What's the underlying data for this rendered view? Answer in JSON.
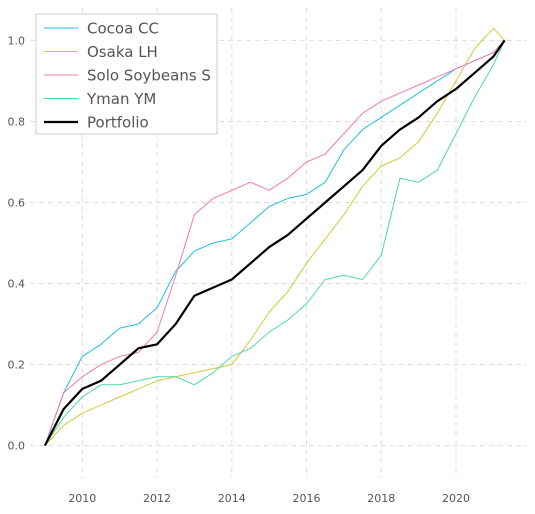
{
  "chart_data": {
    "type": "line",
    "title": "",
    "xlabel": "",
    "ylabel": "",
    "xlim": [
      2008.6,
      2021.9
    ],
    "ylim": [
      -0.08,
      1.08
    ],
    "xticks": [
      2010,
      2012,
      2014,
      2016,
      2018,
      2020
    ],
    "yticks": [
      0.0,
      0.2,
      0.4,
      0.6,
      0.8,
      1.0
    ],
    "xtick_labels": [
      "2010",
      "2012",
      "2014",
      "2016",
      "2018",
      "2020"
    ],
    "ytick_labels": [
      "0.0",
      "0.2",
      "0.4",
      "0.6",
      "0.8",
      "1.0"
    ],
    "grid": true,
    "legend_position": "top-left",
    "series": [
      {
        "name": "Cocoa CC",
        "color": "#22bfe0",
        "x": [
          2009.0,
          2009.5,
          2010.0,
          2010.5,
          2011.0,
          2011.5,
          2012.0,
          2012.5,
          2013.0,
          2013.5,
          2014.0,
          2014.5,
          2015.0,
          2015.5,
          2016.0,
          2016.5,
          2017.0,
          2017.5,
          2018.0,
          2018.5,
          2019.0,
          2019.5,
          2020.0,
          2020.5,
          2021.0,
          2021.3
        ],
        "y": [
          0.0,
          0.13,
          0.22,
          0.25,
          0.29,
          0.3,
          0.34,
          0.43,
          0.48,
          0.5,
          0.51,
          0.55,
          0.59,
          0.61,
          0.62,
          0.65,
          0.73,
          0.78,
          0.81,
          0.84,
          0.87,
          0.9,
          0.93,
          0.95,
          0.97,
          1.0
        ]
      },
      {
        "name": "Osaka LH",
        "color": "#d4c83a",
        "x": [
          2009.0,
          2009.5,
          2010.0,
          2010.5,
          2011.0,
          2011.5,
          2012.0,
          2012.5,
          2013.0,
          2013.5,
          2014.0,
          2014.5,
          2015.0,
          2015.5,
          2016.0,
          2016.5,
          2017.0,
          2017.5,
          2018.0,
          2018.5,
          2019.0,
          2019.5,
          2020.0,
          2020.5,
          2021.0,
          2021.3
        ],
        "y": [
          0.0,
          0.05,
          0.08,
          0.1,
          0.12,
          0.14,
          0.16,
          0.17,
          0.18,
          0.19,
          0.2,
          0.26,
          0.33,
          0.38,
          0.45,
          0.51,
          0.57,
          0.64,
          0.69,
          0.71,
          0.75,
          0.82,
          0.9,
          0.98,
          1.03,
          1.0
        ]
      },
      {
        "name": "Solo Soybeans S",
        "color": "#f07ab2",
        "x": [
          2009.0,
          2009.5,
          2010.0,
          2010.5,
          2011.0,
          2011.5,
          2012.0,
          2012.5,
          2013.0,
          2013.5,
          2014.0,
          2014.5,
          2015.0,
          2015.5,
          2016.0,
          2016.5,
          2017.0,
          2017.5,
          2018.0,
          2018.5,
          2019.0,
          2019.5,
          2020.0,
          2020.5,
          2021.0,
          2021.3
        ],
        "y": [
          0.0,
          0.13,
          0.17,
          0.2,
          0.22,
          0.23,
          0.28,
          0.42,
          0.57,
          0.61,
          0.63,
          0.65,
          0.63,
          0.66,
          0.7,
          0.72,
          0.77,
          0.82,
          0.85,
          0.87,
          0.89,
          0.91,
          0.93,
          0.95,
          0.97,
          1.0
        ]
      },
      {
        "name": "Yman YM",
        "color": "#4fd8a8",
        "x": [
          2009.0,
          2009.5,
          2010.0,
          2010.5,
          2011.0,
          2011.5,
          2012.0,
          2012.5,
          2013.0,
          2013.5,
          2014.0,
          2014.5,
          2015.0,
          2015.5,
          2016.0,
          2016.5,
          2017.0,
          2017.5,
          2018.0,
          2018.5,
          2019.0,
          2019.5,
          2020.0,
          2020.5,
          2021.0,
          2021.3
        ],
        "y": [
          0.0,
          0.07,
          0.12,
          0.15,
          0.15,
          0.16,
          0.17,
          0.17,
          0.15,
          0.18,
          0.22,
          0.24,
          0.28,
          0.31,
          0.35,
          0.41,
          0.42,
          0.41,
          0.47,
          0.66,
          0.65,
          0.68,
          0.77,
          0.86,
          0.94,
          1.0
        ]
      },
      {
        "name": "Portfolio",
        "color": "#000000",
        "x": [
          2009.0,
          2009.5,
          2010.0,
          2010.5,
          2011.0,
          2011.5,
          2012.0,
          2012.5,
          2013.0,
          2013.5,
          2014.0,
          2014.5,
          2015.0,
          2015.5,
          2016.0,
          2016.5,
          2017.0,
          2017.5,
          2018.0,
          2018.5,
          2019.0,
          2019.5,
          2020.0,
          2020.5,
          2021.0,
          2021.3
        ],
        "y": [
          0.0,
          0.09,
          0.14,
          0.16,
          0.2,
          0.24,
          0.25,
          0.3,
          0.37,
          0.39,
          0.41,
          0.45,
          0.49,
          0.52,
          0.56,
          0.6,
          0.64,
          0.68,
          0.74,
          0.78,
          0.81,
          0.85,
          0.88,
          0.92,
          0.96,
          1.0
        ]
      }
    ]
  }
}
